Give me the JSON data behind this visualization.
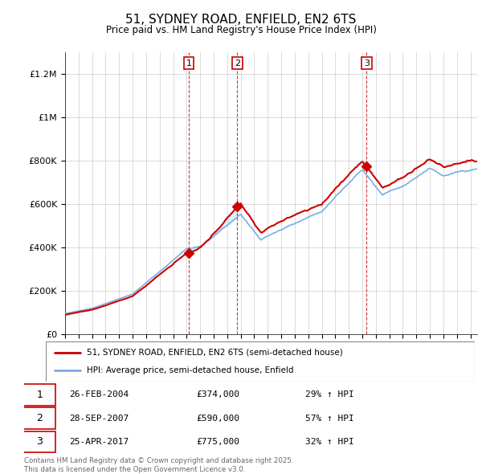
{
  "title": "51, SYDNEY ROAD, ENFIELD, EN2 6TS",
  "subtitle": "Price paid vs. HM Land Registry's House Price Index (HPI)",
  "ylim": [
    0,
    1300000
  ],
  "yticks": [
    0,
    200000,
    400000,
    600000,
    800000,
    1000000,
    1200000
  ],
  "ytick_labels": [
    "£0",
    "£200K",
    "£400K",
    "£600K",
    "£800K",
    "£1M",
    "£1.2M"
  ],
  "legend_line1": "51, SYDNEY ROAD, ENFIELD, EN2 6TS (semi-detached house)",
  "legend_line2": "HPI: Average price, semi-detached house, Enfield",
  "sale1_label": "1",
  "sale1_date": "26-FEB-2004",
  "sale1_price": "£374,000",
  "sale1_hpi": "29% ↑ HPI",
  "sale1_x": 2004.15,
  "sale1_y": 374000,
  "sale2_label": "2",
  "sale2_date": "28-SEP-2007",
  "sale2_price": "£590,000",
  "sale2_hpi": "57% ↑ HPI",
  "sale2_x": 2007.75,
  "sale2_y": 590000,
  "sale3_label": "3",
  "sale3_date": "25-APR-2017",
  "sale3_price": "£775,000",
  "sale3_hpi": "32% ↑ HPI",
  "sale3_x": 2017.32,
  "sale3_y": 775000,
  "line_color_red": "#cc0000",
  "line_color_blue": "#7aade0",
  "shaded_color": "#ddeeff",
  "footer_text": "Contains HM Land Registry data © Crown copyright and database right 2025.\nThis data is licensed under the Open Government Licence v3.0.",
  "xmin": 1995.0,
  "xmax": 2025.5
}
